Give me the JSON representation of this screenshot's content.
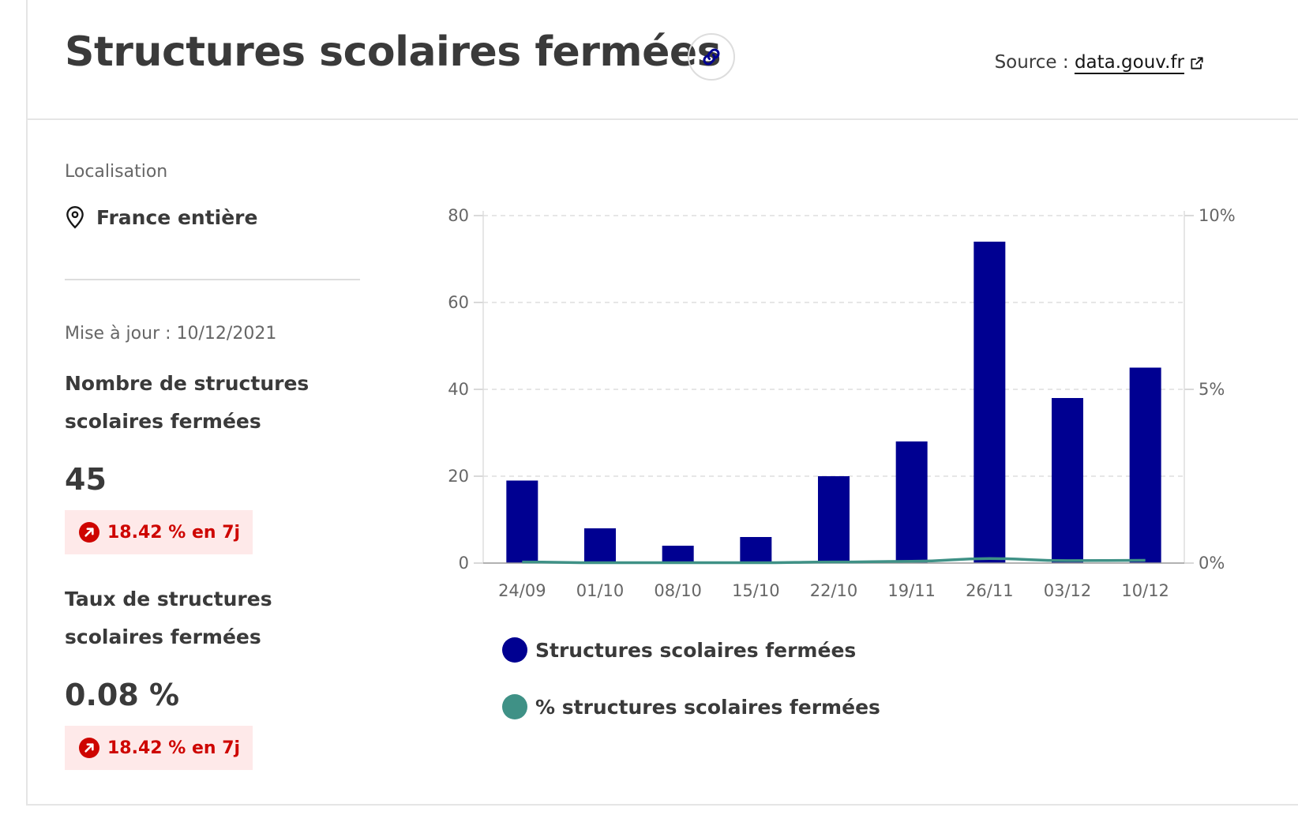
{
  "header": {
    "title": "Structures scolaires fermées",
    "source_label": "Source :",
    "source_link": "data.gouv.fr"
  },
  "sidebar": {
    "location_label": "Localisation",
    "location_value": "France entière",
    "update_label": "Mise à jour : 10/12/2021",
    "kpis": [
      {
        "title": "Nombre de structures scolaires fermées",
        "value": "45",
        "trend": "18.42 % en 7j"
      },
      {
        "title": "Taux de structures scolaires fermées",
        "value": "0.08 %",
        "trend": "18.42 % en 7j"
      }
    ]
  },
  "colors": {
    "bar": "#000091",
    "line": "#3f9186",
    "trend_text": "#ce0500",
    "trend_bg": "#fee9e9"
  },
  "chart_data": {
    "type": "bar",
    "categories": [
      "24/09",
      "01/10",
      "08/10",
      "15/10",
      "22/10",
      "19/11",
      "26/11",
      "03/12",
      "10/12"
    ],
    "series": [
      {
        "name": "Structures scolaires fermées",
        "type": "bar",
        "axis": "left",
        "values": [
          19,
          8,
          4,
          6,
          20,
          28,
          74,
          38,
          45
        ]
      },
      {
        "name": "% structures scolaires fermées",
        "type": "line",
        "axis": "right",
        "values": [
          0.03,
          0.01,
          0.01,
          0.01,
          0.03,
          0.05,
          0.13,
          0.07,
          0.08
        ]
      }
    ],
    "y_left": {
      "min": 0,
      "max": 80,
      "ticks": [
        "0",
        "20",
        "40",
        "60",
        "80"
      ]
    },
    "y_right": {
      "min": 0,
      "max": 10,
      "ticks": [
        "0%",
        "5%",
        "10%"
      ]
    },
    "grid": true,
    "legend_position": "bottom-left"
  }
}
